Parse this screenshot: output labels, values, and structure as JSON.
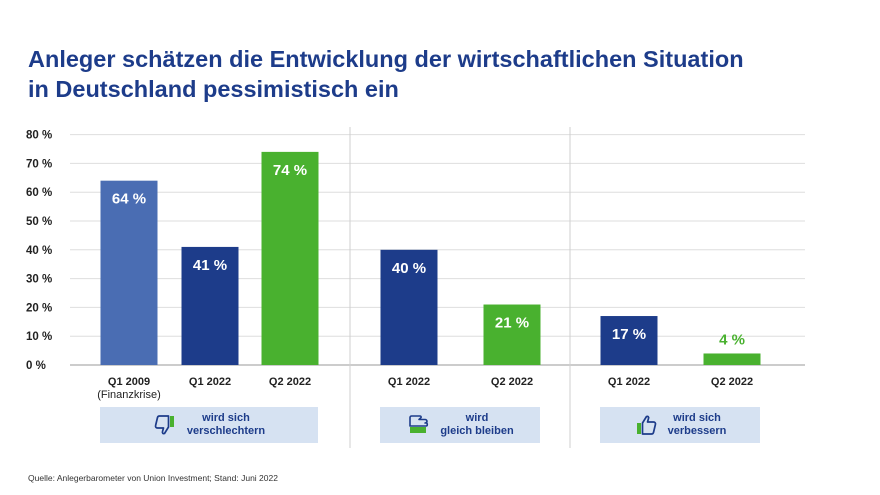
{
  "title_line1": "Anleger schätzen die Entwicklung der wirtschaftlichen Situation",
  "title_line2": "in Deutschland pessimistisch ein",
  "source": "Quelle: Anlegerbarometer von Union Investment; Stand: Juni 2022",
  "colors": {
    "title": "#1d3c8a",
    "q1_2009": "#4a6db3",
    "q1_2022": "#1d3c8a",
    "q2_2022": "#49b12f",
    "box_bg": "#d6e2f2"
  },
  "chart_data": {
    "type": "bar",
    "y_ticks": [
      "0 %",
      "10 %",
      "20 %",
      "30 %",
      "40 %",
      "50 %",
      "60 %",
      "70 %",
      "80 %"
    ],
    "ylim": [
      0,
      80
    ],
    "grid": true,
    "groups": [
      {
        "label": "wird sich verschlechtern",
        "label_lines": [
          "wird sich",
          "verschlechtern"
        ],
        "icon": "thumbs-down-icon",
        "bars": [
          {
            "category": "Q1 2009",
            "sub": "(Finanzkrise)",
            "value": 64,
            "label": "64 %",
            "color_key": "q1_2009"
          },
          {
            "category": "Q1 2022",
            "value": 41,
            "label": "41 %",
            "color_key": "q1_2022"
          },
          {
            "category": "Q2 2022",
            "value": 74,
            "label": "74 %",
            "color_key": "q2_2022"
          }
        ]
      },
      {
        "label": "wird gleich bleiben",
        "label_lines": [
          "wird",
          "gleich bleiben"
        ],
        "icon": "thumbs-sideways-icon",
        "bars": [
          {
            "category": "Q1 2022",
            "value": 40,
            "label": "40 %",
            "color_key": "q1_2022"
          },
          {
            "category": "Q2 2022",
            "value": 21,
            "label": "21 %",
            "color_key": "q2_2022"
          }
        ]
      },
      {
        "label": "wird sich verbessern",
        "label_lines": [
          "wird sich",
          "verbessern"
        ],
        "icon": "thumbs-up-icon",
        "bars": [
          {
            "category": "Q1 2022",
            "value": 17,
            "label": "17 %",
            "color_key": "q1_2022"
          },
          {
            "category": "Q2 2022",
            "value": 4,
            "label": "4 %",
            "color_key": "q2_2022"
          }
        ]
      }
    ]
  }
}
